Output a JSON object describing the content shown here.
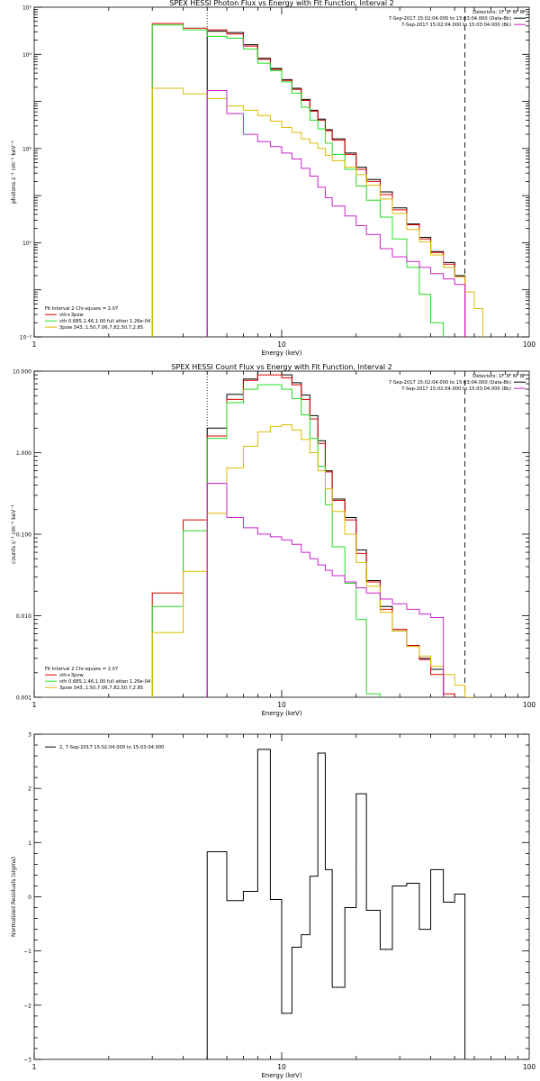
{
  "colors": {
    "black": "#000000",
    "red": "#dd0000",
    "green": "#22dd22",
    "yellow": "#ddbb00",
    "magenta": "#cc22cc"
  },
  "chart_data": [
    {
      "type": "line",
      "title": "SPEX HESSI Photon Flux vs Energy with Fit Function, Interval 2",
      "xlabel": "Energy (keV)",
      "ylabel": "photons s⁻¹ cm⁻² keV⁻¹",
      "xscale": "log",
      "yscale": "log",
      "xlim": [
        1,
        100
      ],
      "ylim": [
        0.01,
        100000
      ],
      "x_ticks": [
        {
          "value": 1,
          "label": "1"
        },
        {
          "value": 10,
          "label": "10"
        },
        {
          "value": 100,
          "label": "100"
        }
      ],
      "y_ticks": [
        {
          "value": 0.01,
          "label": "10⁻²"
        },
        {
          "value": 1,
          "label": "10⁰"
        },
        {
          "value": 100,
          "label": "10²"
        },
        {
          "value": 10000,
          "label": "10⁴"
        },
        {
          "value": 100000,
          "label": "10⁵"
        }
      ],
      "info_lines": [
        "Detectors: 1F 3F 6F 8F",
        "7-Sep-2017 15:02:04.000 to 15:03:04.000 (Data-Bk)",
        "7-Sep-2017 15:02:04.000 to 15:03:04.000 (Bk)"
      ],
      "legend_lines": [
        "Fit Interval 2   Chi-square = 2.07",
        "vth+3pow",
        "vth 0.685,1.46,1.00  full atten 1.26e-04",
        "3pow 343.,1.50,7.06,7.82,50.7,2.85"
      ],
      "vlines": [
        {
          "x": 5,
          "style": "dotted"
        },
        {
          "x": 55,
          "style": "dashed"
        }
      ],
      "bin_edges": [
        3,
        4,
        5,
        6,
        7,
        8,
        9,
        10,
        11,
        12,
        13,
        14,
        15,
        16,
        18,
        20,
        22,
        25,
        28,
        32,
        36,
        40,
        45,
        50,
        55,
        60,
        65
      ],
      "series": [
        {
          "name": "Data-Bk",
          "color": "#000000",
          "start_bin": 2,
          "values": [
            31000,
            29000,
            16000,
            8200,
            5000,
            2900,
            1900,
            1100,
            650,
            420,
            250,
            160,
            80,
            40,
            22,
            12,
            5.5,
            2.5,
            1.3,
            0.65,
            0.38,
            0.2
          ]
        },
        {
          "name": "vth+3pow",
          "color": "#dd0000",
          "start_bin": 0,
          "values": [
            45000,
            36000,
            33000,
            27000,
            15000,
            7800,
            4800,
            2800,
            1800,
            1050,
            620,
            400,
            240,
            150,
            75,
            36,
            20,
            10.5,
            5,
            2.4,
            1.2,
            0.62,
            0.35,
            0.19
          ]
        },
        {
          "name": "vth",
          "color": "#22dd22",
          "start_bin": 0,
          "values": [
            42000,
            33000,
            24000,
            22000,
            13000,
            6500,
            4500,
            2600,
            1500,
            750,
            400,
            260,
            130,
            75,
            36,
            16,
            8,
            3.5,
            1.2,
            0.3,
            0.08,
            0.02
          ]
        },
        {
          "name": "3pow",
          "color": "#ddbb00",
          "start_bin": 0,
          "values": [
            1900,
            1450,
            1150,
            800,
            650,
            500,
            380,
            280,
            220,
            160,
            130,
            100,
            72,
            55,
            40,
            28,
            16.5,
            8.5,
            4.2,
            1.9,
            1.05,
            0.55,
            0.3,
            0.19,
            0.09,
            0.04
          ]
        },
        {
          "name": "Bk",
          "color": "#cc22cc",
          "start_bin": 2,
          "values": [
            1700,
            550,
            200,
            140,
            110,
            80,
            60,
            38,
            26,
            15,
            9,
            6,
            3.7,
            2.3,
            1.5,
            0.75,
            0.5,
            0.4,
            0.3,
            0.22,
            0.17,
            0.13
          ]
        }
      ]
    },
    {
      "type": "line",
      "title": "SPEX HESSI Count Flux vs Energy with Fit Function, Interval 2",
      "xlabel": "Energy (keV)",
      "ylabel": "counts s⁻¹ cm⁻² keV⁻¹",
      "xscale": "log",
      "yscale": "log",
      "xlim": [
        1,
        100
      ],
      "ylim": [
        0.001,
        10
      ],
      "x_ticks": [
        {
          "value": 1,
          "label": "1"
        },
        {
          "value": 10,
          "label": "10"
        },
        {
          "value": 100,
          "label": "100"
        }
      ],
      "y_ticks": [
        {
          "value": 0.001,
          "label": "0.001"
        },
        {
          "value": 0.01,
          "label": "0.010"
        },
        {
          "value": 0.1,
          "label": "0.100"
        },
        {
          "value": 1,
          "label": "1.000"
        },
        {
          "value": 10,
          "label": "10.000"
        }
      ],
      "info_lines": [
        "Detectors: 1F 3F 6F 8F",
        "7-Sep-2017 15:02:04.000 to 15:03:04.000 (Data-Bk)",
        "7-Sep-2017 15:02:04.000 to 15:03:04.000 (Bk)"
      ],
      "legend_lines": [
        "Fit Interval 2   Chi-square = 2.07",
        "vth+3pow",
        "vth 0.685,1.46,1.00  full atten 1.26e-04",
        "3pow 343.,1.50,7.06,7.82,50.7,2.85"
      ],
      "vlines": [
        {
          "x": 5,
          "style": "dotted"
        },
        {
          "x": 55,
          "style": "dashed"
        }
      ],
      "bin_edges": [
        3,
        4,
        5,
        6,
        7,
        8,
        9,
        10,
        11,
        12,
        13,
        14,
        15,
        16,
        18,
        20,
        22,
        25,
        28,
        32,
        36,
        40,
        45,
        50,
        55,
        60,
        65,
        70
      ],
      "series": [
        {
          "name": "Data-Bk",
          "color": "#000000",
          "start_bin": 2,
          "values": [
            2.0,
            5.2,
            8.0,
            10.0,
            10.0,
            9.0,
            7.2,
            5.1,
            2.85,
            1.4,
            0.6,
            0.27,
            0.16,
            0.064,
            0.027,
            0.013,
            0.0065,
            0.0043,
            0.003,
            0.0022
          ]
        },
        {
          "name": "vth+3pow",
          "color": "#dd0000",
          "start_bin": 0,
          "values": [
            0.019,
            0.15,
            1.6,
            4.5,
            7.7,
            9.0,
            9.0,
            8.3,
            6.8,
            4.5,
            2.6,
            1.3,
            0.58,
            0.26,
            0.15,
            0.058,
            0.026,
            0.012,
            0.0068,
            0.0043,
            0.0029,
            0.0019,
            0.0011
          ]
        },
        {
          "name": "vth",
          "color": "#22dd22",
          "start_bin": 0,
          "values": [
            0.013,
            0.11,
            1.5,
            4.1,
            6.0,
            6.8,
            6.8,
            6.0,
            4.6,
            2.9,
            1.5,
            0.68,
            0.23,
            0.07,
            0.025,
            0.009,
            0.0011
          ]
        },
        {
          "name": "3pow",
          "color": "#ddbb00",
          "start_bin": 0,
          "values": [
            0.0062,
            0.035,
            0.18,
            0.65,
            1.2,
            1.8,
            2.1,
            2.2,
            1.9,
            1.45,
            1.0,
            0.6,
            0.36,
            0.19,
            0.1,
            0.045,
            0.023,
            0.011,
            0.0065,
            0.0042,
            0.0032,
            0.0024,
            0.0019,
            0.0014,
            0.001
          ]
        },
        {
          "name": "Bk",
          "color": "#cc22cc",
          "start_bin": 2,
          "values": [
            0.42,
            0.16,
            0.12,
            0.1,
            0.093,
            0.085,
            0.075,
            0.06,
            0.05,
            0.042,
            0.036,
            0.031,
            0.026,
            0.022,
            0.019,
            0.016,
            0.014,
            0.012,
            0.0105,
            0.0095
          ]
        }
      ]
    },
    {
      "type": "line",
      "title": "",
      "xlabel": "Energy (keV)",
      "ylabel": "Normalized Residuals (sigma)",
      "xscale": "log",
      "yscale": "linear",
      "xlim": [
        1,
        100
      ],
      "ylim": [
        -3,
        3
      ],
      "x_ticks": [
        {
          "value": 1,
          "label": "1"
        },
        {
          "value": 10,
          "label": "10"
        },
        {
          "value": 100,
          "label": "100"
        }
      ],
      "y_ticks": [
        {
          "value": -3,
          "label": "−3"
        },
        {
          "value": -2,
          "label": "−2"
        },
        {
          "value": -1,
          "label": "−1"
        },
        {
          "value": 0,
          "label": "0"
        },
        {
          "value": 1,
          "label": "1"
        },
        {
          "value": 2,
          "label": "2"
        },
        {
          "value": 3,
          "label": "3"
        }
      ],
      "info_lines": [],
      "legend_lines": [
        "2,  7-Sep-2017 15:02:04.000 to 15:03:04.000"
      ],
      "vlines": [],
      "bin_edges": [
        5,
        6,
        7,
        8,
        9,
        10,
        11,
        12,
        13,
        14,
        15,
        16,
        18,
        20,
        22,
        25,
        28,
        32,
        36,
        40,
        45,
        50,
        55
      ],
      "series": [
        {
          "name": "2,  7-Sep-2017 15:02:04.000 to 15:03:04.000",
          "color": "#000000",
          "start_bin": 0,
          "values": [
            0.83,
            -0.07,
            0.1,
            2.72,
            -0.05,
            -2.15,
            -0.93,
            -0.7,
            0.38,
            2.65,
            0.5,
            -1.67,
            -0.2,
            1.9,
            -0.25,
            -0.97,
            0.2,
            0.25,
            -0.6,
            0.5,
            -0.1,
            0.05
          ]
        }
      ],
      "bottom_edge_drop": true
    }
  ]
}
